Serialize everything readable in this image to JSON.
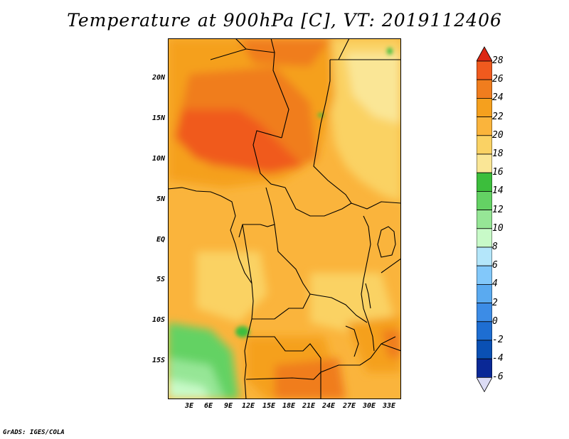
{
  "title": "Temperature at 900hPa [C], VT: 2019112406",
  "credit": "GrADS: IGES/COLA",
  "lat_labels": [
    "20N",
    "15N",
    "10N",
    "5N",
    "EQ",
    "5S",
    "10S",
    "15S"
  ],
  "lon_labels": [
    "3E",
    "6E",
    "9E",
    "12E",
    "15E",
    "18E",
    "21E",
    "24E",
    "27E",
    "30E",
    "33E"
  ],
  "colorbar": {
    "labels": [
      "28",
      "26",
      "24",
      "22",
      "20",
      "18",
      "16",
      "14",
      "12",
      "10",
      "8",
      "6",
      "4",
      "2",
      "0",
      "-2",
      "-4",
      "-6"
    ],
    "colors": [
      "#f05a1e",
      "#f07d1e",
      "#f5a01e",
      "#fab43c",
      "#fad264",
      "#fae696",
      "#3cbe3c",
      "#64d264",
      "#96e696",
      "#c8fac8",
      "#b4e6fa",
      "#82c8fa",
      "#5aaaf0",
      "#3c8ce6",
      "#1e6ed2",
      "#0a50b4",
      "#0a2896"
    ],
    "top_color": "#dc2814",
    "bottom_color": "#dcdcf5"
  }
}
